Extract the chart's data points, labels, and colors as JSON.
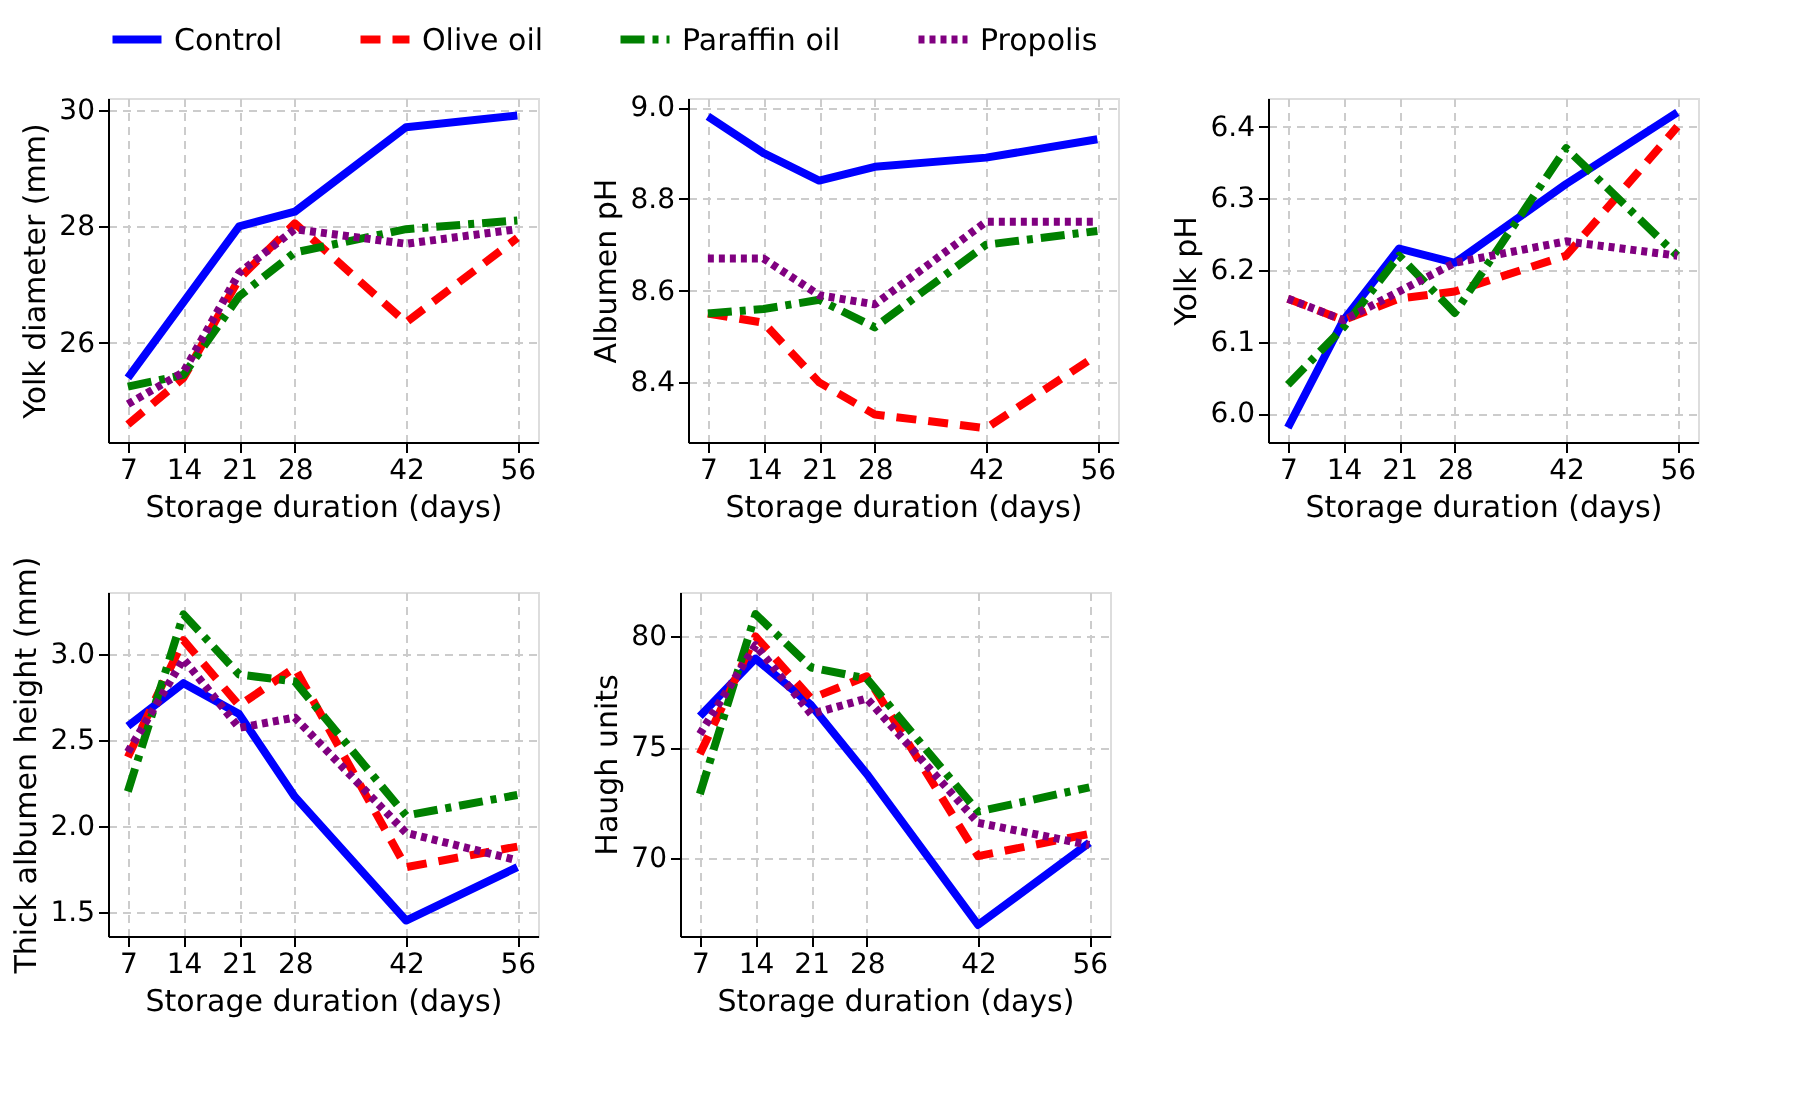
{
  "chart_data": [
    {
      "type": "line",
      "xlabel": "Storage duration (days)",
      "ylabel": "Yolk diameter (mm)",
      "x": [
        7,
        14,
        21,
        28,
        42,
        56
      ],
      "xlim": [
        4.5,
        58.6
      ],
      "xticks": [
        7,
        14,
        21,
        28,
        42,
        56
      ],
      "ylim": [
        24.3,
        30.2
      ],
      "yticks": [
        26,
        28,
        30
      ],
      "grid": true,
      "legend": "top",
      "series": [
        {
          "name": "Control",
          "color": "#0000ff",
          "line_style": "solid",
          "values": [
            25.4,
            26.7,
            28.0,
            28.25,
            29.7,
            29.9
          ]
        },
        {
          "name": "Olive oil",
          "color": "#ff0000",
          "line_style": "dashed",
          "values": [
            24.6,
            25.4,
            27.1,
            28.05,
            26.35,
            27.8
          ]
        },
        {
          "name": "Paraffin oil",
          "color": "#008000",
          "line_style": "dashdot",
          "values": [
            25.25,
            25.45,
            26.8,
            27.55,
            27.95,
            28.1
          ]
        },
        {
          "name": "Propolis",
          "color": "#800080",
          "line_style": "dotted",
          "values": [
            24.95,
            25.5,
            27.2,
            27.95,
            27.7,
            27.95
          ]
        }
      ]
    },
    {
      "type": "line",
      "xlabel": "Storage duration (days)",
      "ylabel": "Albumen pH",
      "x": [
        7,
        14,
        21,
        28,
        42,
        56
      ],
      "xlim": [
        4.5,
        58.6
      ],
      "xticks": [
        7,
        14,
        21,
        28,
        42,
        56
      ],
      "ylim": [
        8.27,
        9.02
      ],
      "yticks": [
        8.4,
        8.6,
        8.8,
        {
          "value": 9.0,
          "label": "9.0"
        }
      ],
      "grid": true,
      "series": [
        {
          "name": "Control",
          "color": "#0000ff",
          "line_style": "solid",
          "values": [
            8.98,
            8.9,
            8.84,
            8.87,
            8.89,
            8.93
          ]
        },
        {
          "name": "Olive oil",
          "color": "#ff0000",
          "line_style": "dashed",
          "values": [
            8.55,
            8.53,
            8.4,
            8.33,
            8.3,
            8.46
          ]
        },
        {
          "name": "Paraffin oil",
          "color": "#008000",
          "line_style": "dashdot",
          "values": [
            8.55,
            8.56,
            8.58,
            8.52,
            8.7,
            8.73
          ]
        },
        {
          "name": "Propolis",
          "color": "#800080",
          "line_style": "dotted",
          "values": [
            8.67,
            8.67,
            8.59,
            8.57,
            8.75,
            8.75
          ]
        }
      ]
    },
    {
      "type": "line",
      "xlabel": "Storage duration (days)",
      "ylabel": "Yolk pH",
      "x": [
        7,
        14,
        21,
        28,
        42,
        56
      ],
      "xlim": [
        4.5,
        58.6
      ],
      "xticks": [
        7,
        14,
        21,
        28,
        42,
        56
      ],
      "ylim": [
        5.96,
        6.44
      ],
      "yticks": [
        {
          "value": 6.0,
          "label": "6.0"
        },
        6.1,
        6.2,
        6.3,
        6.4
      ],
      "grid": true,
      "series": [
        {
          "name": "Control",
          "color": "#0000ff",
          "line_style": "solid",
          "values": [
            5.98,
            6.13,
            6.23,
            6.21,
            6.32,
            6.42
          ]
        },
        {
          "name": "Olive oil",
          "color": "#ff0000",
          "line_style": "dashed",
          "values": [
            6.16,
            6.13,
            6.16,
            6.17,
            6.22,
            6.4
          ]
        },
        {
          "name": "Paraffin oil",
          "color": "#008000",
          "line_style": "dashdot",
          "values": [
            6.04,
            6.12,
            6.22,
            6.14,
            6.37,
            6.22
          ]
        },
        {
          "name": "Propolis",
          "color": "#800080",
          "line_style": "dotted",
          "values": [
            6.16,
            6.13,
            6.17,
            6.21,
            6.24,
            6.22
          ]
        }
      ]
    },
    {
      "type": "line",
      "xlabel": "Storage duration (days)",
      "ylabel": "Thick albumen height (mm)",
      "x": [
        7,
        14,
        21,
        28,
        42,
        56
      ],
      "xlim": [
        4.5,
        58.6
      ],
      "xticks": [
        7,
        14,
        21,
        28,
        42,
        56
      ],
      "ylim": [
        1.36,
        3.36
      ],
      "yticks": [
        1.5,
        {
          "value": 2.0,
          "label": "2.0"
        },
        2.5,
        {
          "value": 3.0,
          "label": "3.0"
        }
      ],
      "grid": true,
      "series": [
        {
          "name": "Control",
          "color": "#0000ff",
          "line_style": "solid",
          "values": [
            2.58,
            2.83,
            2.65,
            2.17,
            1.45,
            1.76
          ]
        },
        {
          "name": "Olive oil",
          "color": "#ff0000",
          "line_style": "dashed",
          "values": [
            2.4,
            3.08,
            2.7,
            2.92,
            1.76,
            1.88
          ]
        },
        {
          "name": "Paraffin oil",
          "color": "#008000",
          "line_style": "dashdot",
          "values": [
            2.2,
            3.23,
            2.88,
            2.84,
            2.06,
            2.18
          ]
        },
        {
          "name": "Propolis",
          "color": "#800080",
          "line_style": "dotted",
          "values": [
            2.43,
            2.97,
            2.57,
            2.63,
            1.96,
            1.8
          ]
        }
      ]
    },
    {
      "type": "line",
      "xlabel": "Storage duration (days)",
      "ylabel": "Haugh units",
      "x": [
        7,
        14,
        21,
        28,
        42,
        56
      ],
      "xlim": [
        4.5,
        58.6
      ],
      "xticks": [
        7,
        14,
        21,
        28,
        42,
        56
      ],
      "ylim": [
        66.5,
        82
      ],
      "yticks": [
        70,
        75,
        80
      ],
      "grid": true,
      "series": [
        {
          "name": "Control",
          "color": "#0000ff",
          "line_style": "solid",
          "values": [
            76.4,
            79.0,
            76.9,
            73.8,
            67.0,
            70.7
          ]
        },
        {
          "name": "Olive oil",
          "color": "#ff0000",
          "line_style": "dashed",
          "values": [
            74.7,
            80.0,
            77.2,
            78.2,
            70.1,
            71.1
          ]
        },
        {
          "name": "Paraffin oil",
          "color": "#008000",
          "line_style": "dashdot",
          "values": [
            72.9,
            81.0,
            78.6,
            78.1,
            72.1,
            73.2
          ]
        },
        {
          "name": "Propolis",
          "color": "#800080",
          "line_style": "dotted",
          "values": [
            75.6,
            79.6,
            76.5,
            77.2,
            71.6,
            70.6
          ]
        }
      ]
    }
  ]
}
